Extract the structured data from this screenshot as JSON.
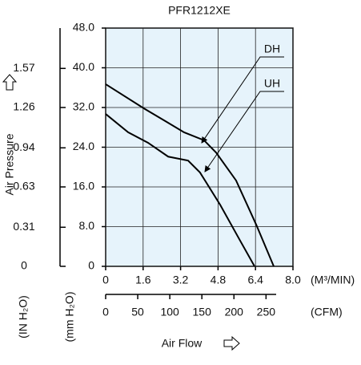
{
  "chart_data": {
    "type": "line",
    "title": "PFR1212XE",
    "y_label": "Air Pressure",
    "x_label": "Air Flow",
    "x_unit": "(M³/MIN)",
    "x2_unit": "(CFM)",
    "y_unit": "(mm H₂O)",
    "y2_unit": "(IN H₂O)",
    "xlim": [
      0,
      8
    ],
    "xticks": [
      0,
      1.6,
      3.2,
      4.8,
      6.4,
      {
        "value": 8,
        "label": "8.0"
      }
    ],
    "x2lim": [
      0,
      292
    ],
    "x2ticks": [
      0,
      50,
      100,
      150,
      200,
      250
    ],
    "ylim": [
      0,
      48
    ],
    "yticks": [
      0,
      {
        "value": 8,
        "label": "8.0"
      },
      {
        "value": 16,
        "label": "16.0"
      },
      {
        "value": 24,
        "label": "24.0"
      },
      {
        "value": 32,
        "label": "32.0"
      },
      {
        "value": 40,
        "label": "40.0"
      },
      {
        "value": 48,
        "label": "48.0"
      }
    ],
    "y2lim": [
      0,
      1.89
    ],
    "y2ticks": [
      0,
      0.31,
      0.63,
      0.94,
      1.26,
      1.57
    ],
    "grid": true,
    "plot_color": "#e6f3fb",
    "series": [
      {
        "name": "DH",
        "color": "#000000",
        "x": [
          0,
          1.64,
          2.5,
          3.35,
          4.2,
          4.72,
          5.57,
          6.43,
          7.18
        ],
        "values": [
          36.7,
          31.8,
          29.4,
          27,
          25.4,
          22.9,
          17.3,
          8.4,
          0
        ]
      },
      {
        "name": "UH",
        "color": "#000000",
        "x": [
          0,
          0.96,
          1.81,
          2.67,
          3.52,
          4.03,
          4.89,
          5.74,
          6.36
        ],
        "values": [
          30.7,
          27,
          24.9,
          22.1,
          21.3,
          18.9,
          12.4,
          5.2,
          0
        ]
      }
    ]
  }
}
